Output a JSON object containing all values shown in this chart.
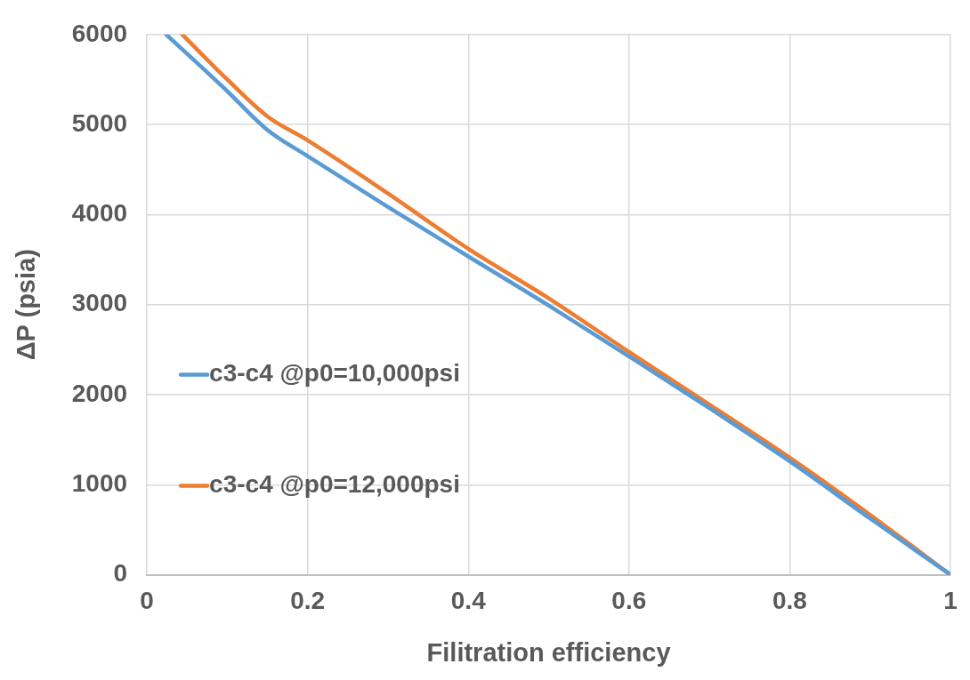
{
  "chart_data": {
    "type": "line",
    "xlabel": "Filitration efficiency",
    "ylabel": "ΔP (psia)",
    "xlim": [
      0,
      1
    ],
    "xticks": [
      0,
      0.2,
      0.4,
      0.6,
      0.8,
      1
    ],
    "ylim": [
      0,
      6000
    ],
    "yticks": [
      0,
      1000,
      2000,
      3000,
      4000,
      5000,
      6000
    ],
    "grid": true,
    "legend": "bottom left",
    "marker": "none",
    "line_style": "solid",
    "series": [
      {
        "name": "c3-c4 @p0=10,000psi",
        "color": "#5b9bd5",
        "x": [
          0.024,
          0.1,
          0.15,
          0.2,
          0.3,
          0.4,
          0.5,
          0.6,
          0.7,
          0.8,
          0.9,
          1
        ],
        "values": [
          6000,
          5370,
          4940,
          4650,
          4085,
          3535,
          2990,
          2425,
          1850,
          1260,
          625,
          0
        ]
      },
      {
        "name": "c3-c4 @p0=12,000psi",
        "color": "#ed7d31",
        "x": [
          0.044,
          0.1,
          0.15,
          0.2,
          0.3,
          0.4,
          0.5,
          0.6,
          0.7,
          0.8,
          0.9,
          1
        ],
        "values": [
          6000,
          5500,
          5090,
          4825,
          4235,
          3620,
          3070,
          2475,
          1890,
          1300,
          665,
          0
        ]
      }
    ]
  }
}
